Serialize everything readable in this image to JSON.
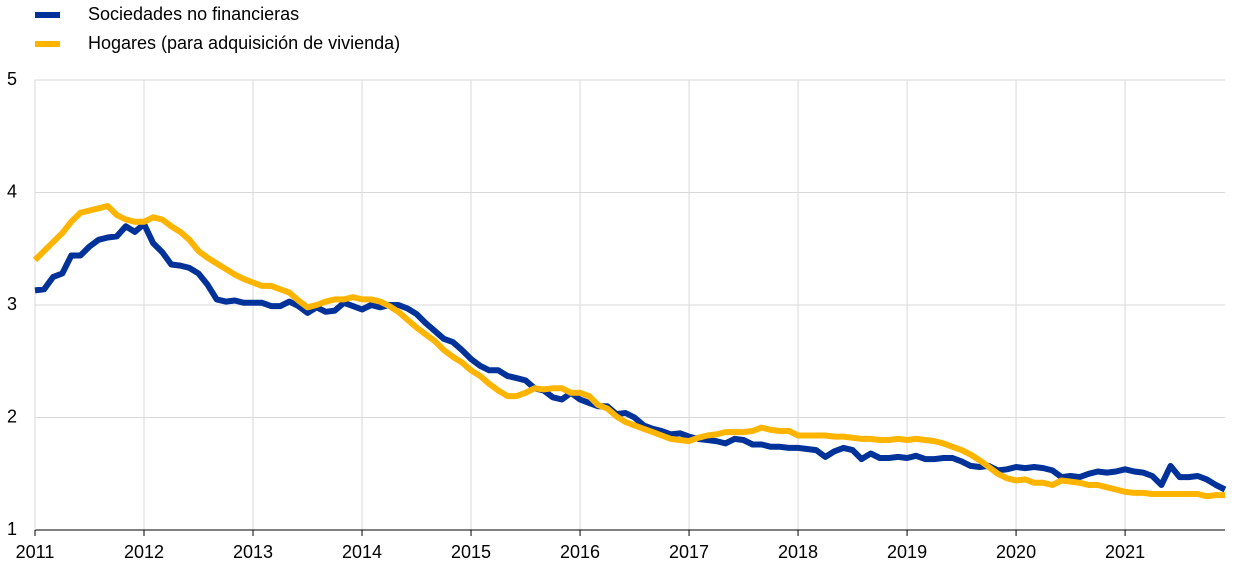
{
  "chart_data": {
    "type": "line",
    "categories": [
      "2011",
      null,
      null,
      null,
      null,
      null,
      null,
      null,
      null,
      null,
      null,
      null,
      "2012",
      null,
      null,
      null,
      null,
      null,
      null,
      null,
      null,
      null,
      null,
      null,
      "2013",
      null,
      null,
      null,
      null,
      null,
      null,
      null,
      null,
      null,
      null,
      null,
      "2014",
      null,
      null,
      null,
      null,
      null,
      null,
      null,
      null,
      null,
      null,
      null,
      "2015",
      null,
      null,
      null,
      null,
      null,
      null,
      null,
      null,
      null,
      null,
      null,
      "2016",
      null,
      null,
      null,
      null,
      null,
      null,
      null,
      null,
      null,
      null,
      null,
      "2017",
      null,
      null,
      null,
      null,
      null,
      null,
      null,
      null,
      null,
      null,
      null,
      "2018",
      null,
      null,
      null,
      null,
      null,
      null,
      null,
      null,
      null,
      null,
      null,
      "2019",
      null,
      null,
      null,
      null,
      null,
      null,
      null,
      null,
      null,
      null,
      null,
      "2020",
      null,
      null,
      null,
      null,
      null,
      null,
      null,
      null,
      null,
      null,
      null,
      "2021",
      null,
      null,
      null,
      null,
      null,
      null,
      null,
      null,
      null,
      null,
      null
    ],
    "series": [
      {
        "name": "Sociedades no financieras",
        "color": "#003299",
        "values": [
          3.13,
          3.14,
          3.25,
          3.28,
          3.44,
          3.44,
          3.52,
          3.58,
          3.6,
          3.61,
          3.7,
          3.65,
          3.72,
          3.55,
          3.47,
          3.36,
          3.35,
          3.33,
          3.28,
          3.18,
          3.05,
          3.03,
          3.04,
          3.02,
          3.02,
          3.02,
          2.99,
          2.99,
          3.03,
          2.99,
          2.93,
          2.98,
          2.94,
          2.95,
          3.02,
          2.99,
          2.96,
          3.0,
          2.98,
          3.0,
          3.0,
          2.97,
          2.92,
          2.84,
          2.77,
          2.7,
          2.67,
          2.6,
          2.52,
          2.46,
          2.42,
          2.42,
          2.37,
          2.35,
          2.33,
          2.26,
          2.24,
          2.18,
          2.16,
          2.22,
          2.16,
          2.13,
          2.1,
          2.1,
          2.03,
          2.04,
          2.0,
          1.93,
          1.9,
          1.88,
          1.85,
          1.86,
          1.83,
          1.81,
          1.8,
          1.79,
          1.77,
          1.81,
          1.8,
          1.76,
          1.76,
          1.74,
          1.74,
          1.73,
          1.73,
          1.72,
          1.71,
          1.65,
          1.7,
          1.73,
          1.71,
          1.63,
          1.68,
          1.64,
          1.64,
          1.65,
          1.64,
          1.66,
          1.63,
          1.63,
          1.64,
          1.64,
          1.61,
          1.57,
          1.56,
          1.57,
          1.53,
          1.54,
          1.56,
          1.55,
          1.56,
          1.55,
          1.53,
          1.47,
          1.48,
          1.47,
          1.5,
          1.52,
          1.51,
          1.52,
          1.54,
          1.52,
          1.51,
          1.48,
          1.4,
          1.57,
          1.47,
          1.47,
          1.48,
          1.45,
          1.4,
          1.36
        ]
      },
      {
        "name": "Hogares (para adquisición de vivienda)",
        "color": "#ffb400",
        "values": [
          3.4,
          3.48,
          3.56,
          3.64,
          3.74,
          3.82,
          3.84,
          3.86,
          3.88,
          3.8,
          3.76,
          3.74,
          3.74,
          3.78,
          3.76,
          3.7,
          3.65,
          3.58,
          3.48,
          3.42,
          3.37,
          3.32,
          3.27,
          3.23,
          3.2,
          3.17,
          3.17,
          3.14,
          3.11,
          3.04,
          2.98,
          3.0,
          3.03,
          3.05,
          3.05,
          3.07,
          3.05,
          3.05,
          3.03,
          2.99,
          2.94,
          2.87,
          2.8,
          2.74,
          2.68,
          2.6,
          2.54,
          2.49,
          2.42,
          2.37,
          2.3,
          2.24,
          2.19,
          2.19,
          2.22,
          2.26,
          2.25,
          2.26,
          2.26,
          2.22,
          2.22,
          2.19,
          2.11,
          2.08,
          2.01,
          1.96,
          1.93,
          1.9,
          1.87,
          1.84,
          1.81,
          1.8,
          1.79,
          1.82,
          1.84,
          1.85,
          1.87,
          1.87,
          1.87,
          1.88,
          1.91,
          1.89,
          1.88,
          1.88,
          1.84,
          1.84,
          1.84,
          1.84,
          1.83,
          1.83,
          1.82,
          1.81,
          1.81,
          1.8,
          1.8,
          1.81,
          1.8,
          1.81,
          1.8,
          1.79,
          1.77,
          1.74,
          1.71,
          1.67,
          1.62,
          1.56,
          1.5,
          1.46,
          1.44,
          1.45,
          1.42,
          1.42,
          1.4,
          1.44,
          1.43,
          1.42,
          1.4,
          1.4,
          1.38,
          1.36,
          1.34,
          1.33,
          1.33,
          1.32,
          1.32,
          1.32,
          1.32,
          1.32,
          1.32,
          1.3,
          1.31,
          1.31
        ]
      }
    ],
    "ylim": [
      1,
      5
    ],
    "yticks": [
      1,
      2,
      3,
      4,
      5
    ],
    "grid": true,
    "legend": "top-left"
  }
}
